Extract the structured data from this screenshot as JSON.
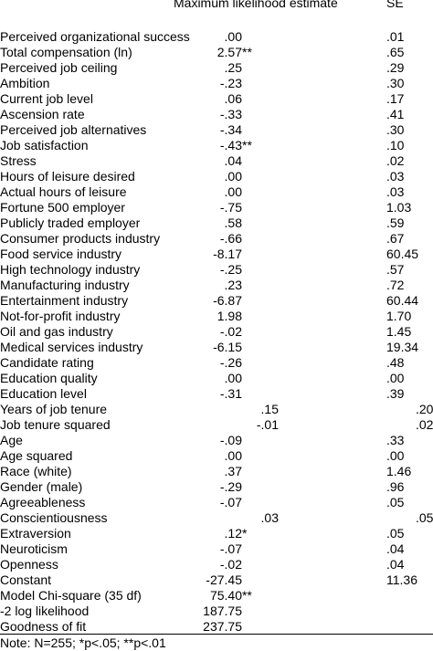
{
  "header": {
    "estimate": "Maximum likelihood estimate",
    "se": "SE"
  },
  "table": {
    "rows": [
      [
        "Perceived organizational success",
        ".00",
        ".01"
      ],
      [
        "Total compensation (ln)",
        "2.57**",
        ".65"
      ],
      [
        "Perceived job ceiling",
        ".25",
        ".29"
      ],
      [
        "Ambition",
        "-.23",
        ".30"
      ],
      [
        "Current job level",
        ".06",
        ".17"
      ],
      [
        "Ascension rate",
        "-.33",
        ".41"
      ],
      [
        "Perceived job alternatives",
        "-.34",
        ".30"
      ],
      [
        "Job satisfaction",
        "-.43**",
        ".10"
      ],
      [
        "Stress",
        ".04",
        ".02"
      ],
      [
        "Hours of leisure desired",
        ".00",
        ".03"
      ],
      [
        "Actual hours of leisure",
        ".00",
        ".03"
      ],
      [
        "Fortune 500 employer",
        "-.75",
        "1.03"
      ],
      [
        "Publicly traded employer",
        ".58",
        ".59"
      ],
      [
        "Consumer products industry",
        "-.66",
        ".67"
      ],
      [
        "Food service industry",
        "-8.17",
        "60.45"
      ],
      [
        "High technology industry",
        "-.25",
        ".57"
      ],
      [
        "Manufacturing industry",
        ".23",
        ".72"
      ],
      [
        "Entertainment industry",
        "-6.87",
        "60.44"
      ],
      [
        "Not-for-profit industry",
        "1.98",
        "1.70"
      ],
      [
        "Oil and gas industry",
        "-.02",
        "1.45"
      ],
      [
        "Medical services industry",
        "-6.15",
        "19.34"
      ],
      [
        "Candidate rating",
        "-.26",
        ".48"
      ],
      [
        "Education quality",
        ".00",
        ".00"
      ],
      [
        "Education level",
        "-.31",
        ".39"
      ],
      [
        "Years of job tenure",
        ".15",
        ".20"
      ],
      [
        "Job tenure squared",
        "-.01",
        ".02"
      ],
      [
        "Age",
        "-.09",
        ".33"
      ],
      [
        "Age squared",
        ".00",
        ".00"
      ],
      [
        "Race (white)",
        ".37",
        "1.46"
      ],
      [
        "Gender (male)",
        "-.29",
        ".96"
      ],
      [
        "Agreeableness",
        "-.07",
        ".05"
      ],
      [
        "Conscientiousness",
        ".03",
        ".05"
      ],
      [
        "Extraversion",
        ".12*",
        ".05"
      ],
      [
        "Neuroticism",
        "-.07",
        ".04"
      ],
      [
        "Openness",
        "-.02",
        ".04"
      ],
      [
        "Constant",
        "-27.45",
        "11.36"
      ],
      [
        "Model Chi-square (35 df)",
        "75.40**",
        null
      ],
      [
        "-2 log likelihood",
        "187.75",
        null
      ],
      [
        "Goodness of fit",
        "237.75",
        null
      ]
    ]
  },
  "note": "Note: N=255; *p<.05; **p<.01"
}
